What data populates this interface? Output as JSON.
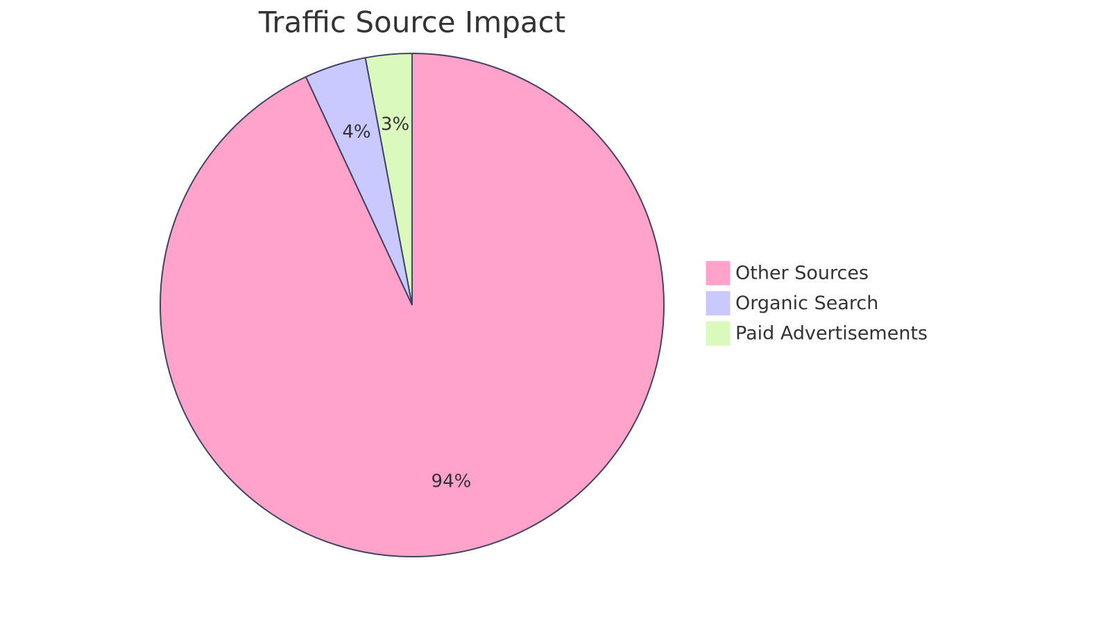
{
  "chart_data": {
    "type": "pie",
    "title": "Traffic Source Impact",
    "categories": [
      "Other Sources",
      "Organic Search",
      "Paid Advertisements"
    ],
    "values": [
      94,
      4,
      3
    ],
    "value_labels": [
      "94%",
      "4%",
      "3%"
    ],
    "colors": [
      "#ffa3cb",
      "#c9c9ff",
      "#dafabd"
    ],
    "legend": "right"
  }
}
